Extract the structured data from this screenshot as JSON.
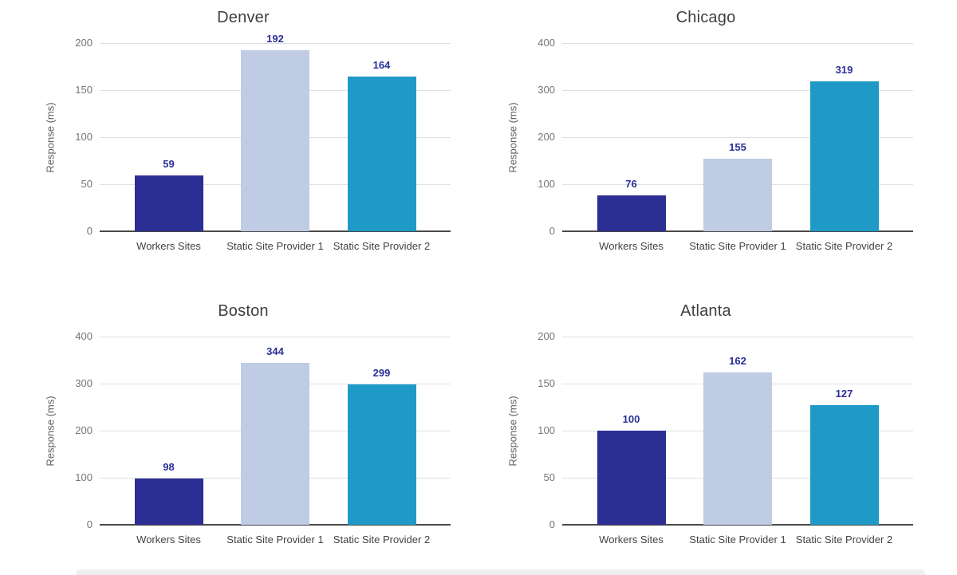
{
  "page": {
    "background": "#ffffff"
  },
  "colors": {
    "title": "#3c4043",
    "tick_label": "#757575",
    "axis_title": "#616161",
    "category_label": "#424242",
    "data_label": "#293096",
    "gridline": "#e0e0e0",
    "baseline": "#4a4a4a",
    "bar_workers_sites": "#2b2e92",
    "bar_static_provider_1": "#c0cbe4",
    "bar_static_provider_2": "#1f9ac7"
  },
  "chart_data": [
    {
      "type": "bar",
      "title": "Denver",
      "xlabel": "",
      "ylabel": "Response (ms)",
      "categories": [
        "Workers Sites",
        "Static Site Provider 1",
        "Static Site Provider 2"
      ],
      "values": [
        59,
        192,
        164
      ],
      "data_labels": [
        "59",
        "192",
        "164"
      ],
      "bar_colors": [
        "#2b2e92",
        "#c0cbe4",
        "#1f9ac7"
      ],
      "ylim": [
        0,
        200
      ],
      "yticks": [
        0,
        50,
        100,
        150,
        200
      ],
      "grid": true,
      "legend": "none"
    },
    {
      "type": "bar",
      "title": "Chicago",
      "xlabel": "",
      "ylabel": "Response (ms)",
      "categories": [
        "Workers Sites",
        "Static Site Provider 1",
        "Static Site Provider 2"
      ],
      "values": [
        76,
        155,
        319
      ],
      "data_labels": [
        "76",
        "155",
        "319"
      ],
      "bar_colors": [
        "#2b2e92",
        "#c0cbe4",
        "#1f9ac7"
      ],
      "ylim": [
        0,
        400
      ],
      "yticks": [
        0,
        100,
        200,
        300,
        400
      ],
      "grid": true,
      "legend": "none"
    },
    {
      "type": "bar",
      "title": "Boston",
      "xlabel": "",
      "ylabel": "Response (ms)",
      "categories": [
        "Workers Sites",
        "Static Site Provider 1",
        "Static Site Provider 2"
      ],
      "values": [
        98,
        344,
        299
      ],
      "data_labels": [
        "98",
        "344",
        "299"
      ],
      "bar_colors": [
        "#2b2e92",
        "#c0cbe4",
        "#1f9ac7"
      ],
      "ylim": [
        0,
        400
      ],
      "yticks": [
        0,
        100,
        200,
        300,
        400
      ],
      "grid": true,
      "legend": "none"
    },
    {
      "type": "bar",
      "title": "Atlanta",
      "xlabel": "",
      "ylabel": "Response (ms)",
      "categories": [
        "Workers Sites",
        "Static Site Provider 1",
        "Static Site Provider 2"
      ],
      "values": [
        100,
        162,
        127
      ],
      "data_labels": [
        "100",
        "162",
        "127"
      ],
      "bar_colors": [
        "#2b2e92",
        "#c0cbe4",
        "#1f9ac7"
      ],
      "ylim": [
        0,
        200
      ],
      "yticks": [
        0,
        50,
        100,
        150,
        200
      ],
      "grid": true,
      "legend": "none"
    }
  ]
}
